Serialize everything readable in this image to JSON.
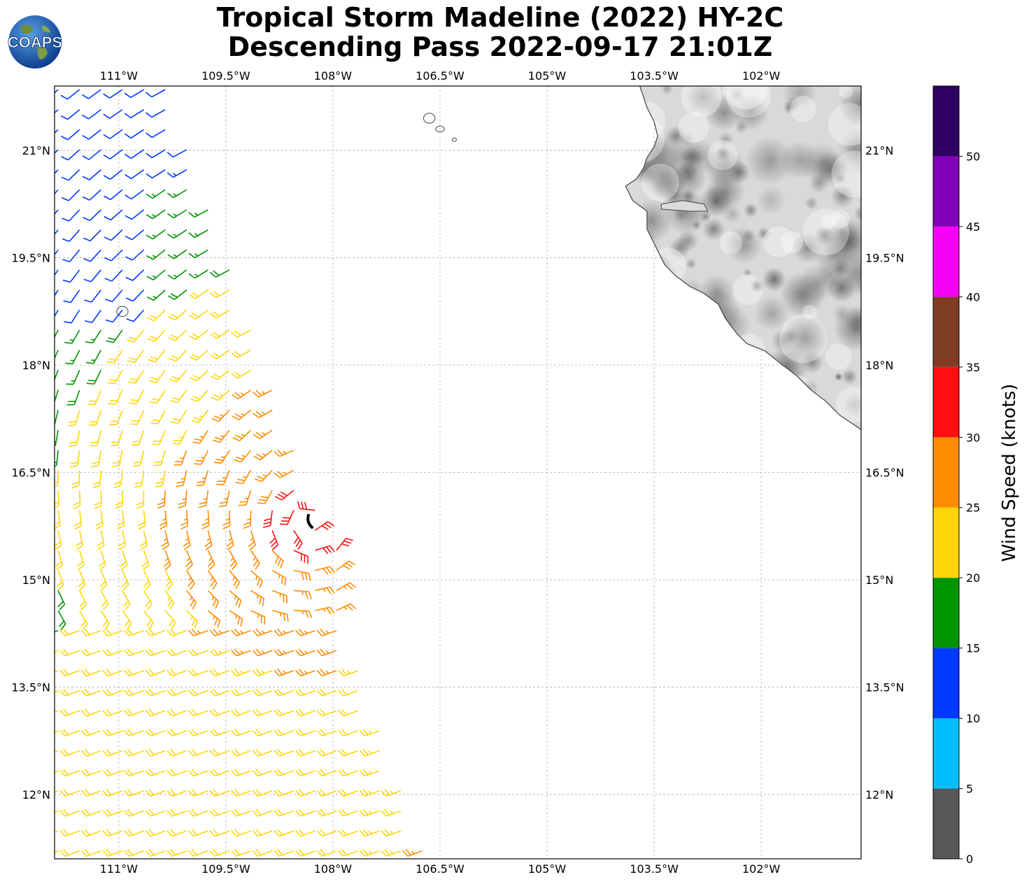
{
  "title": {
    "line1": "Tropical Storm Madeline (2022) HY-2C",
    "line2": "Descending Pass 2022-09-17 21:01Z"
  },
  "logo": {
    "text": "COAPS",
    "icon": "globe-icon"
  },
  "map": {
    "extent": {
      "lon_min": -111.9,
      "lon_max": -100.6,
      "lat_min": 11.1,
      "lat_max": 21.9
    },
    "lon_ticks": [
      {
        "value": -111.0,
        "label": "111°W"
      },
      {
        "value": -109.5,
        "label": "109.5°W"
      },
      {
        "value": -108.0,
        "label": "108°W"
      },
      {
        "value": -106.5,
        "label": "106.5°W"
      },
      {
        "value": -105.0,
        "label": "105°W"
      },
      {
        "value": -103.5,
        "label": "103.5°W"
      },
      {
        "value": -102.0,
        "label": "102°W"
      }
    ],
    "lat_ticks": [
      {
        "value": 21.0,
        "label": "21°N"
      },
      {
        "value": 19.5,
        "label": "19.5°N"
      },
      {
        "value": 18.0,
        "label": "18°N"
      },
      {
        "value": 16.5,
        "label": "16.5°N"
      },
      {
        "value": 15.0,
        "label": "15°N"
      },
      {
        "value": 13.5,
        "label": "13.5°N"
      },
      {
        "value": 12.0,
        "label": "12°N"
      }
    ],
    "gridlines": true,
    "storm_center": {
      "lon": -108.3,
      "lat": 15.8
    },
    "coastline": [
      [
        -103.7,
        21.9
      ],
      [
        -103.6,
        21.6
      ],
      [
        -103.5,
        21.4
      ],
      [
        -103.45,
        21.2
      ],
      [
        -103.5,
        21.05
      ],
      [
        -103.6,
        20.9
      ],
      [
        -103.65,
        20.75
      ],
      [
        -103.75,
        20.6
      ],
      [
        -103.9,
        20.5
      ],
      [
        -103.8,
        20.3
      ],
      [
        -103.6,
        20.15
      ],
      [
        -103.6,
        19.9
      ],
      [
        -103.45,
        19.6
      ],
      [
        -103.35,
        19.4
      ],
      [
        -103.2,
        19.25
      ],
      [
        -103.0,
        19.1
      ],
      [
        -102.8,
        19.0
      ],
      [
        -102.6,
        18.85
      ],
      [
        -102.5,
        18.65
      ],
      [
        -102.35,
        18.45
      ],
      [
        -102.2,
        18.3
      ],
      [
        -101.95,
        18.2
      ],
      [
        -101.7,
        18.0
      ],
      [
        -101.5,
        17.85
      ],
      [
        -101.3,
        17.65
      ],
      [
        -101.1,
        17.5
      ],
      [
        -100.9,
        17.3
      ],
      [
        -100.75,
        17.2
      ],
      [
        -100.6,
        17.1
      ]
    ],
    "islands": [
      {
        "lon": -106.65,
        "lat": 21.45,
        "rx": 0.08,
        "ry": 0.07
      },
      {
        "lon": -106.5,
        "lat": 21.3,
        "rx": 0.06,
        "ry": 0.04
      },
      {
        "lon": -106.3,
        "lat": 21.15,
        "rx": 0.03,
        "ry": 0.025
      },
      {
        "lon": -110.95,
        "lat": 18.75,
        "rx": 0.08,
        "ry": 0.07
      }
    ],
    "lake": [
      [
        -103.4,
        20.25
      ],
      [
        -103.1,
        20.3
      ],
      [
        -102.8,
        20.25
      ],
      [
        -102.75,
        20.15
      ],
      [
        -103.0,
        20.15
      ],
      [
        -103.4,
        20.18
      ]
    ]
  },
  "colorbar": {
    "title": "Wind Speed (knots)",
    "bins": [
      {
        "min": 0,
        "max": 5,
        "color": "#575757"
      },
      {
        "min": 5,
        "max": 10,
        "color": "#00bfff"
      },
      {
        "min": 10,
        "max": 15,
        "color": "#0039ff"
      },
      {
        "min": 15,
        "max": 20,
        "color": "#009400"
      },
      {
        "min": 20,
        "max": 25,
        "color": "#ffd60a"
      },
      {
        "min": 25,
        "max": 30,
        "color": "#ff8c00"
      },
      {
        "min": 30,
        "max": 35,
        "color": "#ff0f0f"
      },
      {
        "min": 35,
        "max": 40,
        "color": "#7f3d26"
      },
      {
        "min": 40,
        "max": 45,
        "color": "#f500f5"
      },
      {
        "min": 45,
        "max": 50,
        "color": "#8200b8"
      },
      {
        "min": 50,
        "max": 55,
        "color": "#2e0061"
      }
    ],
    "tick_labels": [
      "0",
      "5",
      "10",
      "15",
      "20",
      "25",
      "30",
      "35",
      "40",
      "45",
      "50"
    ]
  }
}
